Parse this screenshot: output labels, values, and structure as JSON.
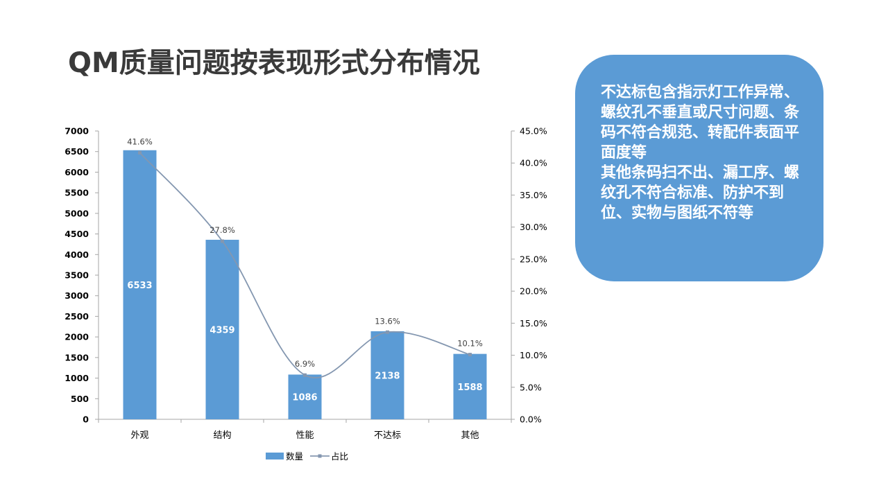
{
  "title": "QM质量问题按表现形式分布情况",
  "note": "不达标包含指示灯工作异常、螺纹孔不垂直或尺寸问题、条码不符合规范、转配件表面平面度等\n其他条码扫不出、漏工序、螺纹孔不符合标准、防护不到位、实物与图纸不符等",
  "colors": {
    "bar": "#5b9bd5",
    "line": "#8497b0",
    "note_bg": "#5b9bd5",
    "title": "#3a3a3a"
  },
  "chart_data": {
    "type": "bar",
    "categories": [
      "外观",
      "结构",
      "性能",
      "不达标",
      "其他"
    ],
    "series": [
      {
        "name": "数量",
        "type": "bar",
        "axis": "left",
        "values": [
          6533,
          4359,
          1086,
          2138,
          1588
        ]
      },
      {
        "name": "占比",
        "type": "line",
        "axis": "right",
        "values": [
          41.6,
          27.8,
          6.9,
          13.6,
          10.1
        ],
        "labels": [
          "41.6%",
          "27.8%",
          "6.9%",
          "13.6%",
          "10.1%"
        ]
      }
    ],
    "ylim": [
      0,
      7000
    ],
    "yticks": [
      "0",
      "500",
      "1000",
      "1500",
      "2000",
      "2500",
      "3000",
      "3500",
      "4000",
      "4500",
      "5000",
      "5500",
      "6000",
      "6500",
      "7000"
    ],
    "y2lim": [
      0,
      45
    ],
    "y2ticks": [
      "0.0%",
      "5.0%",
      "10.0%",
      "15.0%",
      "20.0%",
      "25.0%",
      "30.0%",
      "35.0%",
      "40.0%",
      "45.0%"
    ],
    "legend": [
      "数量",
      "占比"
    ],
    "legend_position": "bottom",
    "grid": false
  }
}
